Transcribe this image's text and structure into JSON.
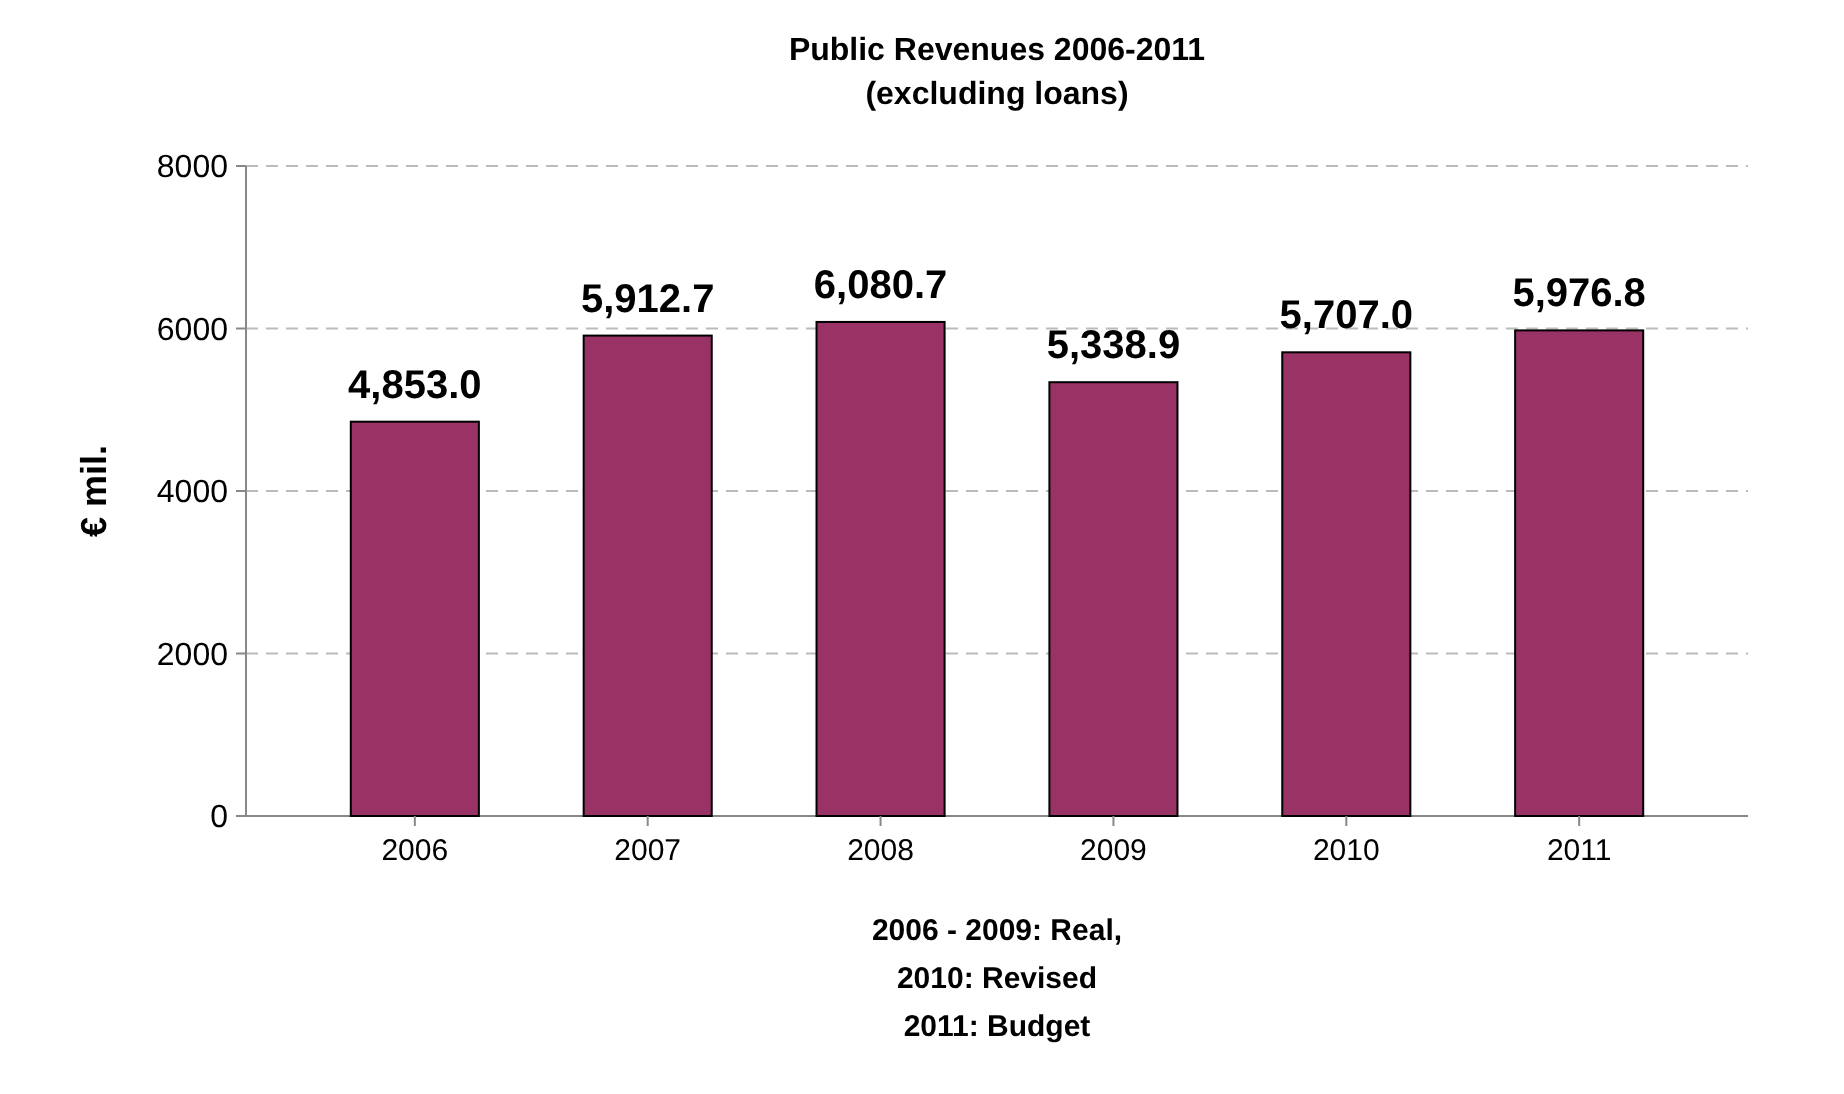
{
  "chart_data": {
    "type": "bar",
    "title": "Public Revenues 2006-2011\n(excluding loans)",
    "xlabel": "2006 - 2009: Real,\n2010: Revised\n2011: Budget",
    "ylabel": "€ mil.",
    "categories": [
      "2006",
      "2007",
      "2008",
      "2009",
      "2010",
      "2011"
    ],
    "values": [
      4853.0,
      5912.7,
      6080.7,
      5338.9,
      5707.0,
      5976.8
    ],
    "value_labels": [
      "4,853.0",
      "5,912.7",
      "6,080.7",
      "5,338.9",
      "5,707.0",
      "5,976.8"
    ],
    "color": "#993366",
    "ylim": [
      0,
      8000
    ],
    "yticks": [
      0,
      2000,
      4000,
      6000,
      8000
    ],
    "grid": "y"
  }
}
